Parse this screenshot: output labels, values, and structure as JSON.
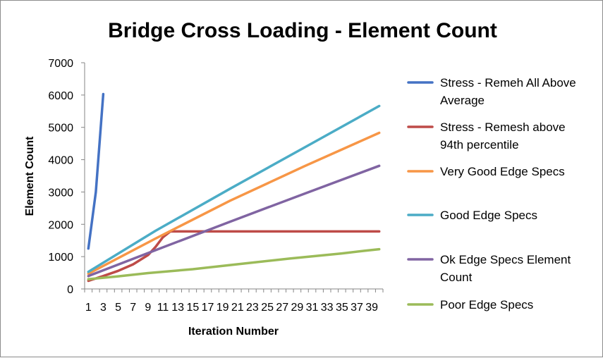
{
  "chart_data": {
    "type": "line",
    "title": "Bridge Cross Loading - Element Count",
    "xlabel": "Iteration Number",
    "ylabel": "Element Count",
    "ylim": [
      0,
      7000
    ],
    "yticks": [
      0,
      1000,
      2000,
      3000,
      4000,
      5000,
      6000,
      7000
    ],
    "x_range": [
      1,
      40
    ],
    "x_tick_labels": [
      "1",
      "3",
      "5",
      "7",
      "9",
      "11",
      "13",
      "15",
      "17",
      "19",
      "21",
      "23",
      "25",
      "27",
      "29",
      "31",
      "33",
      "35",
      "37",
      "39"
    ],
    "grid": "horizontal-off",
    "legend_position": "right",
    "series": [
      {
        "name": "Stress - Remeh All Above Average",
        "color": "#4472c4",
        "points": [
          [
            1,
            1250
          ],
          [
            2,
            3000
          ],
          [
            3,
            6030
          ]
        ]
      },
      {
        "name": "Stress - Remesh above 94th percentile",
        "color": "#be4b48",
        "points": [
          [
            1,
            250
          ],
          [
            3,
            400
          ],
          [
            5,
            560
          ],
          [
            7,
            760
          ],
          [
            9,
            1050
          ],
          [
            10,
            1300
          ],
          [
            11,
            1600
          ],
          [
            12,
            1780
          ],
          [
            40,
            1780
          ]
        ]
      },
      {
        "name": "Very Good Edge Specs",
        "color": "#f79646",
        "points": [
          [
            1,
            470
          ],
          [
            10,
            1560
          ],
          [
            20,
            2730
          ],
          [
            30,
            3800
          ],
          [
            40,
            4830
          ]
        ]
      },
      {
        "name": "Good Edge Specs",
        "color": "#4bacc6",
        "points": [
          [
            1,
            530
          ],
          [
            10,
            1800
          ],
          [
            20,
            3100
          ],
          [
            30,
            4380
          ],
          [
            40,
            5660
          ]
        ]
      },
      {
        "name": "Ok Edge Specs Element Count",
        "color": "#8064a2",
        "points": [
          [
            1,
            400
          ],
          [
            10,
            1200
          ],
          [
            20,
            2080
          ],
          [
            30,
            2950
          ],
          [
            40,
            3810
          ]
        ]
      },
      {
        "name": "Poor Edge Specs",
        "color": "#9bbb59",
        "points": [
          [
            1,
            300
          ],
          [
            5,
            390
          ],
          [
            9,
            490
          ],
          [
            15,
            610
          ],
          [
            20,
            740
          ],
          [
            28,
            940
          ],
          [
            35,
            1100
          ],
          [
            38,
            1180
          ],
          [
            40,
            1230
          ]
        ]
      }
    ]
  }
}
